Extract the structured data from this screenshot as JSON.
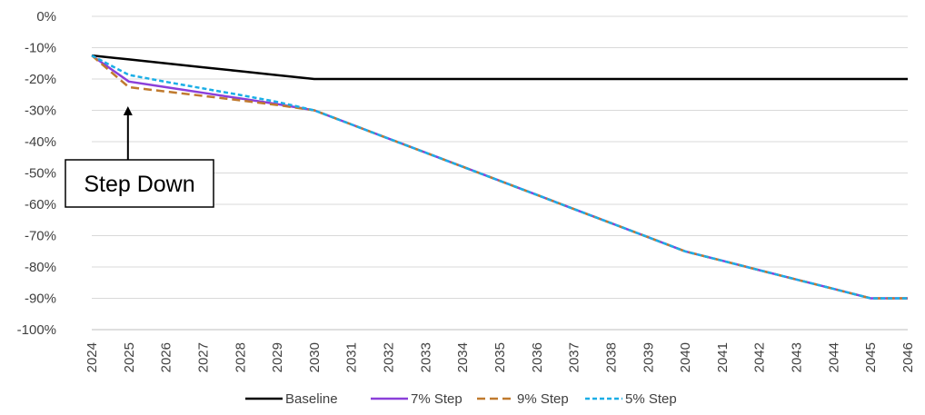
{
  "chart_data": {
    "type": "line",
    "title": "",
    "xlabel": "",
    "ylabel": "",
    "x": [
      "2024",
      "2025",
      "2026",
      "2027",
      "2028",
      "2029",
      "2030",
      "2031",
      "2032",
      "2033",
      "2034",
      "2035",
      "2036",
      "2037",
      "2038",
      "2039",
      "2040",
      "2041",
      "2042",
      "2043",
      "2044",
      "2045",
      "2046"
    ],
    "ylim": [
      -100,
      0
    ],
    "yticks": [
      0,
      -10,
      -20,
      -30,
      -40,
      -50,
      -60,
      -70,
      -80,
      -90,
      -100
    ],
    "ytick_labels": [
      "0%",
      "-10%",
      "-20%",
      "-30%",
      "-40%",
      "-50%",
      "-60%",
      "-70%",
      "-80%",
      "-90%",
      "-100%"
    ],
    "grid": true,
    "legend_position": "bottom",
    "series": [
      {
        "name": "Baseline",
        "color": "#000000",
        "dash": "solid",
        "values": [
          -12.5,
          -13.75,
          -15.0,
          -16.25,
          -17.5,
          -18.75,
          -20,
          -20,
          -20,
          -20,
          -20,
          -20,
          -20,
          -20,
          -20,
          -20,
          -20,
          -20,
          -20,
          -20,
          -20,
          -20,
          -20
        ]
      },
      {
        "name": "7% Step",
        "color": "#8B3FD9",
        "dash": "solid",
        "values": [
          -12.5,
          -20.8,
          -22.6,
          -24.4,
          -26.2,
          -28.0,
          -30.0,
          -34.5,
          -39.0,
          -43.5,
          -48.0,
          -52.5,
          -57.0,
          -61.5,
          -66.0,
          -70.5,
          -75.0,
          -78.0,
          -81.0,
          -84.0,
          -87.0,
          -90.0,
          -90.0
        ]
      },
      {
        "name": "9% Step",
        "color": "#C07A2E",
        "dash": "dashed",
        "values": [
          -12.5,
          -22.6,
          -24.0,
          -25.4,
          -26.8,
          -28.3,
          -30.0,
          -34.5,
          -39.0,
          -43.5,
          -48.0,
          -52.5,
          -57.0,
          -61.5,
          -66.0,
          -70.5,
          -75.0,
          -78.0,
          -81.0,
          -84.0,
          -87.0,
          -90.0,
          -90.0
        ]
      },
      {
        "name": "5% Step",
        "color": "#1AAEE6",
        "dash": "dotted",
        "values": [
          -12.5,
          -18.7,
          -20.9,
          -23.0,
          -25.1,
          -27.3,
          -30.0,
          -34.5,
          -39.0,
          -43.5,
          -48.0,
          -52.5,
          -57.0,
          -61.5,
          -66.0,
          -70.5,
          -75.0,
          -78.0,
          -81.0,
          -84.0,
          -87.0,
          -90.0,
          -90.0
        ]
      }
    ],
    "annotation": {
      "text": "Step Down",
      "target_x": "2025",
      "target_y": -29
    }
  }
}
